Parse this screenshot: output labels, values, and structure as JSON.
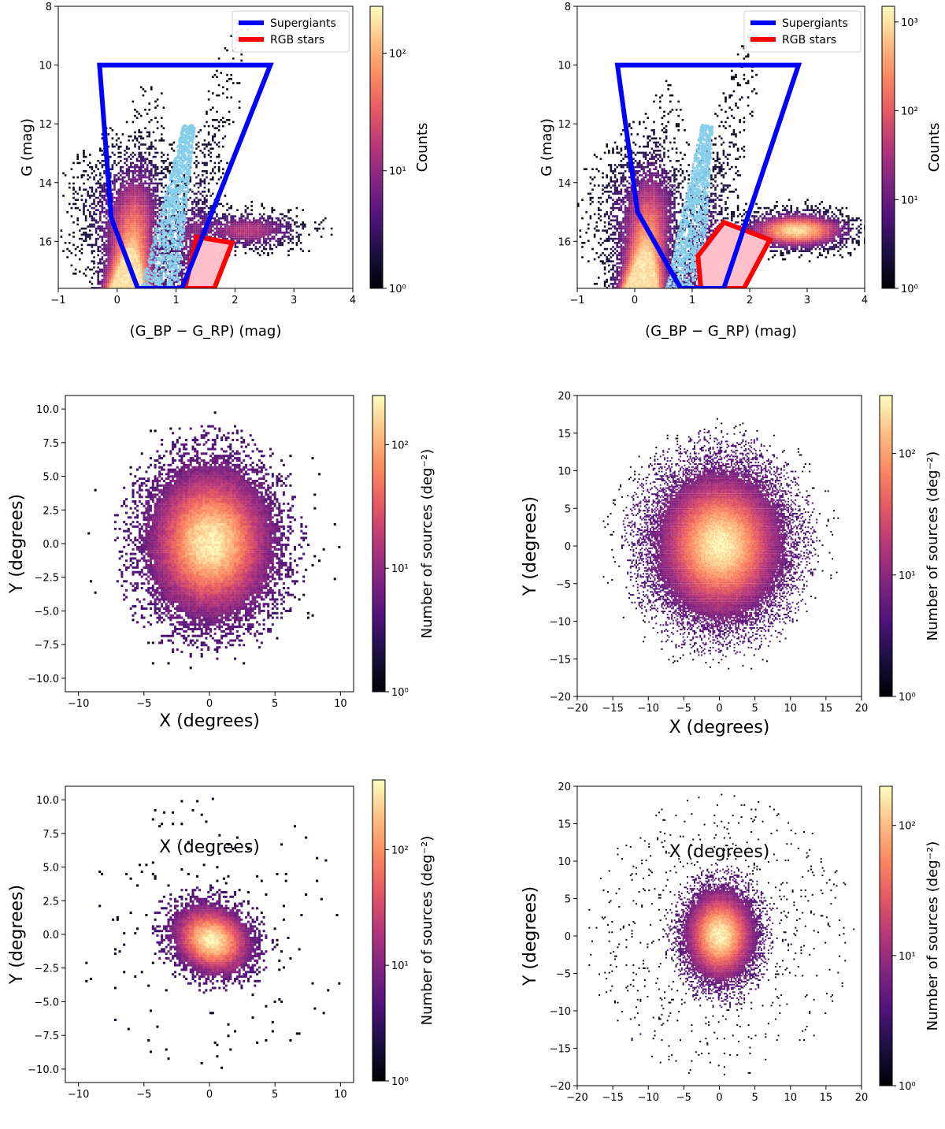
{
  "chart_data": [
    {
      "type": "heatmap",
      "subtype": "color-magnitude diagram",
      "xlabel": "(G_BP − G_RP) (mag)",
      "ylabel": "G (mag)",
      "xlim": [
        -1,
        4
      ],
      "ylim": [
        17.6,
        8
      ],
      "xticks": [
        -1,
        0,
        1,
        2,
        3,
        4
      ],
      "yticks": [
        8,
        10,
        12,
        14,
        16
      ],
      "colorbar": {
        "label": "Counts",
        "scale": "log",
        "range": [
          1,
          250
        ],
        "ticks": [
          1,
          10,
          100
        ]
      },
      "legend": [
        {
          "name": "Supergiants",
          "color": "#0000ff"
        },
        {
          "name": "RGB stars",
          "color": "#ff0000"
        }
      ],
      "regions": {
        "supergiants": [
          [
            -0.3,
            10
          ],
          [
            2.6,
            10
          ],
          [
            1.1,
            17.6
          ],
          [
            0.35,
            17.6
          ],
          [
            -0.1,
            15.2
          ]
        ],
        "rgb": [
          [
            1.35,
            15.85
          ],
          [
            1.95,
            16.05
          ],
          [
            1.65,
            17.6
          ],
          [
            1.15,
            17.6
          ]
        ]
      }
    },
    {
      "type": "heatmap",
      "subtype": "color-magnitude diagram",
      "xlabel": "(G_BP − G_RP) (mag)",
      "ylabel": "G (mag)",
      "xlim": [
        -1,
        4
      ],
      "ylim": [
        17.6,
        8
      ],
      "xticks": [
        -1,
        0,
        1,
        2,
        3,
        4
      ],
      "yticks": [
        8,
        10,
        12,
        14,
        16
      ],
      "colorbar": {
        "label": "Counts",
        "scale": "log",
        "range": [
          1,
          1500
        ],
        "ticks": [
          1,
          10,
          100,
          1000
        ]
      },
      "legend": [
        {
          "name": "Supergiants",
          "color": "#0000ff"
        },
        {
          "name": "RGB stars",
          "color": "#ff0000"
        }
      ],
      "regions": {
        "supergiants": [
          [
            -0.3,
            10
          ],
          [
            2.85,
            10
          ],
          [
            1.55,
            17.6
          ],
          [
            0.8,
            17.6
          ],
          [
            0.05,
            15
          ]
        ],
        "rgb": [
          [
            1.1,
            16.5
          ],
          [
            1.55,
            15.35
          ],
          [
            2.35,
            15.95
          ],
          [
            1.9,
            17.6
          ],
          [
            1.15,
            17.6
          ]
        ]
      }
    },
    {
      "type": "heatmap",
      "subtype": "spatial density",
      "xlabel": "X (degrees)",
      "ylabel": "Y (degrees)",
      "xlim": [
        -11,
        11
      ],
      "ylim": [
        -11,
        11
      ],
      "xticks": [
        -10,
        -5,
        0,
        5,
        10
      ],
      "yticks": [
        -10,
        -7.5,
        -5,
        -2.5,
        0,
        2.5,
        5,
        7.5,
        10
      ],
      "colorbar": {
        "label": "Number of sources (deg⁻²)",
        "scale": "log",
        "range": [
          1,
          250
        ],
        "ticks": [
          1,
          10,
          100
        ]
      },
      "blobs": [
        {
          "cx": 0,
          "cy": 0,
          "sx": 2.7,
          "sy": 3.2,
          "peak": 1.0
        }
      ],
      "halo_radius": 10
    },
    {
      "type": "heatmap",
      "subtype": "spatial density",
      "xlabel": "X (degrees)",
      "ylabel": "Y (degrees)",
      "xlim": [
        -20,
        20
      ],
      "ylim": [
        -20,
        20
      ],
      "xticks": [
        -20,
        -15,
        -10,
        -5,
        0,
        5,
        10,
        15,
        20
      ],
      "yticks": [
        -20,
        -15,
        -10,
        -5,
        0,
        5,
        10,
        15,
        20
      ],
      "colorbar": {
        "label": "Number of sources (deg⁻²)",
        "scale": "log",
        "range": [
          1,
          300
        ],
        "ticks": [
          1,
          10,
          100
        ]
      },
      "blobs": [
        {
          "cx": 0,
          "cy": 0,
          "sx": 5,
          "sy": 5.5,
          "peak": 1.0
        }
      ],
      "halo_radius": 17
    },
    {
      "type": "heatmap",
      "subtype": "spatial density",
      "xlabel": "X (degrees)",
      "ylabel": "Y (degrees)",
      "xlim": [
        -11,
        11
      ],
      "ylim": [
        -11,
        11
      ],
      "xticks": [
        -10,
        -5,
        0,
        5,
        10
      ],
      "yticks": [
        -10,
        -7.5,
        -5,
        -2.5,
        0,
        2.5,
        5,
        7.5,
        10
      ],
      "colorbar": {
        "label": "Number of sources (deg⁻²)",
        "scale": "log",
        "range": [
          1,
          400
        ],
        "ticks": [
          1,
          10,
          100
        ]
      },
      "blobs": [
        {
          "cx": 0,
          "cy": -0.5,
          "sx": 1.7,
          "sy": 1.5,
          "peak": 1.0
        }
      ],
      "halo_radius": 10.5
    },
    {
      "type": "heatmap",
      "subtype": "spatial density",
      "xlabel": "X (degrees)",
      "ylabel": "Y (degrees)",
      "xlim": [
        -20,
        20
      ],
      "ylim": [
        -20,
        20
      ],
      "xticks": [
        -20,
        -15,
        -10,
        -5,
        0,
        5,
        10,
        15,
        20
      ],
      "yticks": [
        -20,
        -15,
        -10,
        -5,
        0,
        5,
        10,
        15,
        20
      ],
      "colorbar": {
        "label": "Number of sources (deg⁻²)",
        "scale": "log",
        "range": [
          1,
          200
        ],
        "ticks": [
          1,
          10,
          100
        ]
      },
      "blobs": [
        {
          "cx": 0,
          "cy": 0,
          "sx": 2.8,
          "sy": 3.5,
          "peak": 1.0
        }
      ],
      "halo_radius": 19
    }
  ]
}
